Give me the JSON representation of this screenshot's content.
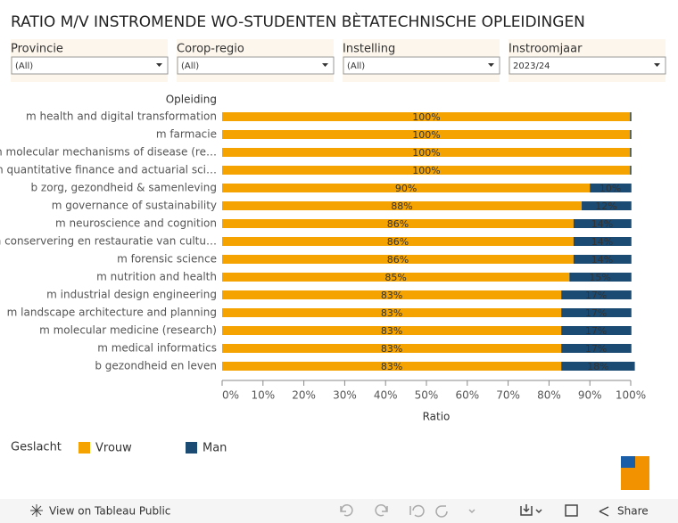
{
  "chart_data": {
    "type": "stacked_barh",
    "title": "RATIO M/V INSTROMENDE WO-STUDENTEN BÈTATECHNISCHE OPLEIDINGEN",
    "y_label": "Opleiding",
    "x_label": "Ratio",
    "legend_title": "Geslacht",
    "categories": [
      "m health and digital transformation",
      "m farmacie",
      "m molecular mechanisms of disease (re…",
      "m quantitative finance and actuarial sci…",
      "b zorg, gezondheid & samenleving",
      "m governance of sustainability",
      "m neuroscience and cognition",
      "m conservering en restauratie van cultu…",
      "m forensic science",
      "m nutrition and health",
      "m industrial design engineering",
      "m landscape architecture and planning",
      "m molecular medicine (research)",
      "m medical informatics",
      "b gezondheid en leven"
    ],
    "series": [
      {
        "name": "Vrouw",
        "color": "#f5a300",
        "values": [
          100,
          100,
          100,
          100,
          90,
          88,
          86,
          86,
          86,
          85,
          83,
          83,
          83,
          83,
          83
        ],
        "value_labels": [
          "100%",
          "100%",
          "100%",
          "100%",
          "90%",
          "88%",
          "86%",
          "86%",
          "86%",
          "85%",
          "83%",
          "83%",
          "83%",
          "83%",
          "83%"
        ]
      },
      {
        "name": "Man",
        "color": "#1b4a72",
        "values": [
          0,
          0,
          0,
          0,
          10,
          12,
          14,
          14,
          14,
          15,
          17,
          17,
          17,
          17,
          18
        ],
        "value_labels": [
          null,
          null,
          null,
          null,
          "10%",
          "12%",
          "14%",
          "14%",
          "14%",
          "15%",
          "17%",
          "17%",
          "17%",
          "17%",
          "18%"
        ]
      }
    ],
    "xlim": [
      0,
      100
    ],
    "xticks": [
      {
        "value": 0,
        "label": "0%"
      },
      {
        "value": 10,
        "label": "10%"
      },
      {
        "value": 20,
        "label": "20%"
      },
      {
        "value": 30,
        "label": "30%"
      },
      {
        "value": 40,
        "label": "40%"
      },
      {
        "value": 50,
        "label": "50%"
      },
      {
        "value": 60,
        "label": "60%"
      },
      {
        "value": 70,
        "label": "70%"
      },
      {
        "value": 80,
        "label": "80%"
      },
      {
        "value": 90,
        "label": "90%"
      },
      {
        "value": 100,
        "label": "100%"
      }
    ]
  },
  "filters": [
    {
      "label": "Provincie",
      "value": "(All)"
    },
    {
      "label": "Corop-regio",
      "value": "(All)"
    },
    {
      "label": "Instelling",
      "value": "(All)"
    },
    {
      "label": "Instroomjaar",
      "value": "2023/24"
    }
  ],
  "toolbar": {
    "view": "View on Tableau Public",
    "share": "Share"
  }
}
